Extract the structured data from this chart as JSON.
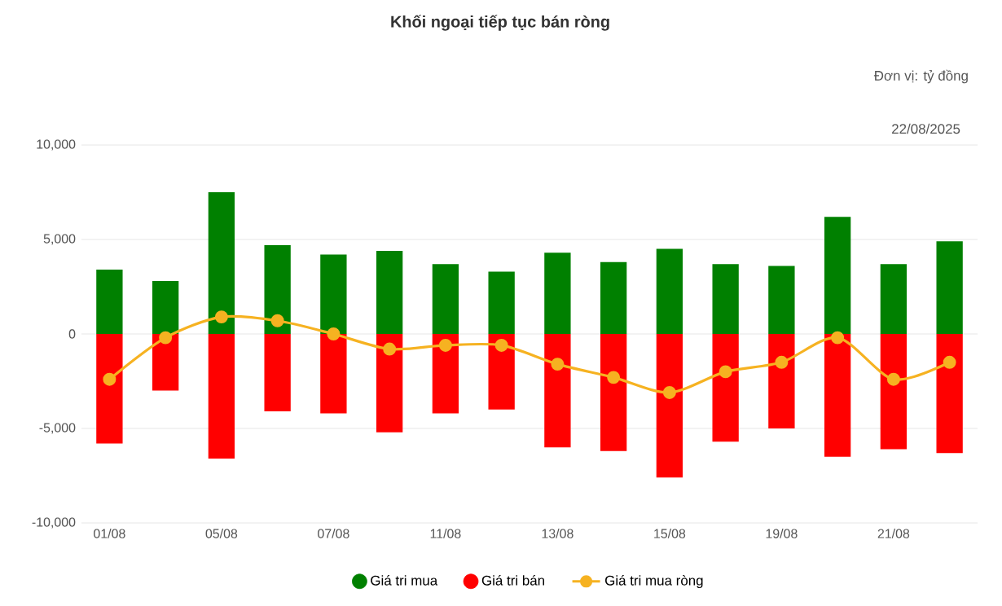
{
  "chart_data": {
    "type": "bar",
    "title": "Khối ngoại tiếp tục bán ròng",
    "annotations": [
      "Đơn vị: tỷ đồng",
      "22/08/2025"
    ],
    "categories": [
      "01/08",
      null,
      "05/08",
      null,
      "07/08",
      null,
      "11/08",
      null,
      "13/08",
      null,
      "15/08",
      null,
      "19/08",
      null,
      "21/08",
      null
    ],
    "stacked": true,
    "series": [
      {
        "name": "Giá tri mua",
        "color": "#008000",
        "values": [
          3400,
          2800,
          7500,
          4700,
          4200,
          4400,
          3700,
          3300,
          4300,
          3800,
          4500,
          3700,
          3600,
          6200,
          3700,
          4900
        ]
      },
      {
        "name": "Giá tri bán",
        "color": "#ff0000",
        "values": [
          -5800,
          -3000,
          -6600,
          -4100,
          -4200,
          -5200,
          -4200,
          -4000,
          -6000,
          -6200,
          -7600,
          -5700,
          -5000,
          -6500,
          -6100,
          -6300
        ]
      },
      {
        "name": "Giá tri mua ròng",
        "type": "line",
        "marker": "circle",
        "color": "#f6b221",
        "values": [
          -2400,
          -200,
          900,
          700,
          0,
          -800,
          -600,
          -600,
          -1600,
          -2300,
          -3100,
          -2000,
          -1500,
          -200,
          -2400,
          -1500
        ]
      }
    ],
    "ylim": [
      -10000,
      10000
    ],
    "yticks": [
      {
        "value": -10000,
        "label": "-10,000"
      },
      {
        "value": -5000,
        "label": "-5,000"
      },
      0,
      {
        "value": 5000,
        "label": "5,000"
      },
      {
        "value": 10000,
        "label": "10,000"
      }
    ],
    "grid": "y",
    "legend": "bottom"
  }
}
